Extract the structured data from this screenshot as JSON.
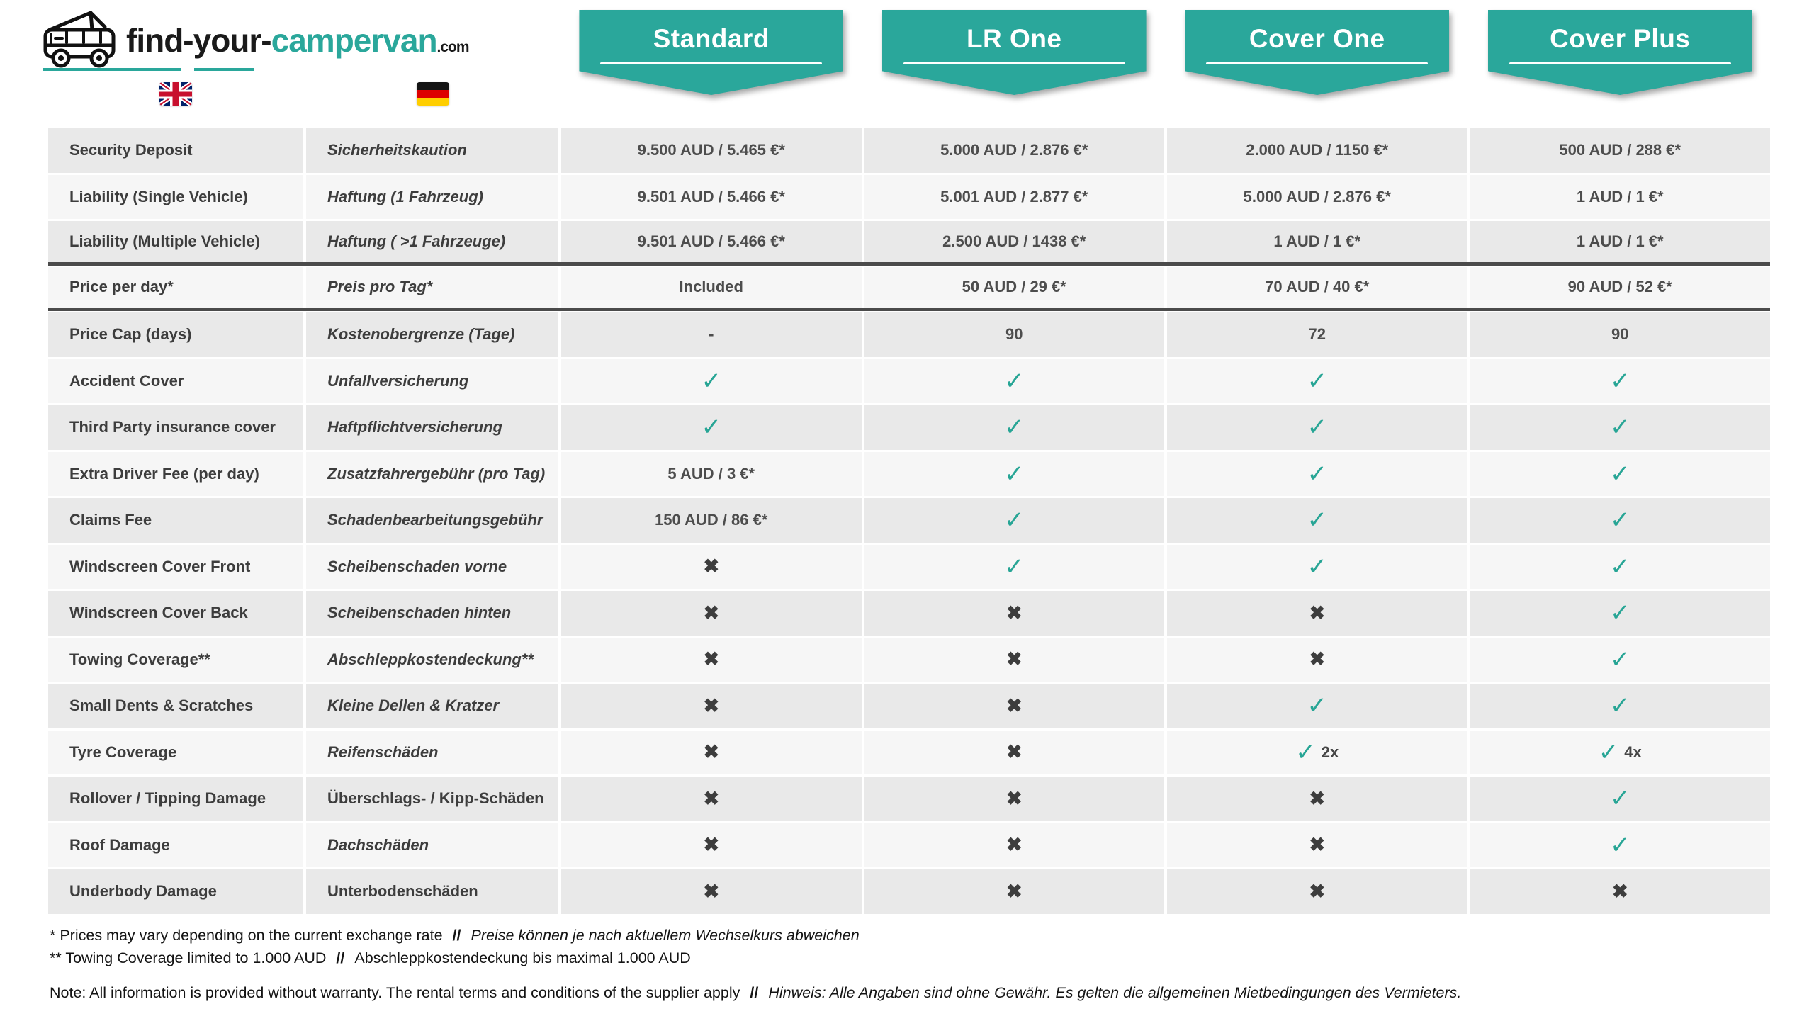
{
  "brand": {
    "name_prefix": "find-your-",
    "name_accent": "campervan",
    "name_tld": ".com"
  },
  "plans": [
    "Standard",
    "LR One",
    "Cover One",
    "Cover Plus"
  ],
  "icons": {
    "check": "✓",
    "cross": "✖",
    "uk_flag": "uk-flag",
    "germany_flag": "germany-flag",
    "logo_van": "campervan-icon"
  },
  "colors": {
    "accent_teal": "#2aa79b",
    "check_teal": "#27a595",
    "cross_gray": "#3d3d3d",
    "row_dark": "#e9e9e9",
    "row_light": "#f6f6f6",
    "divider": "#4b4b4b"
  },
  "table": {
    "rows": [
      {
        "en": "Security Deposit",
        "de": "Sicherheitskaution",
        "de_italic": true,
        "values": [
          "9.500 AUD / 5.465 €*",
          "5.000 AUD / 2.876 €*",
          "2.000 AUD / 1150 €*",
          "500 AUD / 288 €*"
        ]
      },
      {
        "en": "Liability (Single Vehicle)",
        "de": "Haftung (1 Fahrzeug)",
        "de_italic": true,
        "values": [
          "9.501 AUD / 5.466 €*",
          "5.001 AUD / 2.877 €*",
          "5.000 AUD / 2.876 €*",
          "1 AUD / 1 €*"
        ]
      },
      {
        "en": "Liability (Multiple Vehicle)",
        "de": "Haftung ( >1 Fahrzeuge)",
        "de_italic": true,
        "divider_below": true,
        "values": [
          "9.501 AUD / 5.466 €*",
          "2.500 AUD / 1438 €*",
          "1 AUD / 1 €*",
          "1 AUD / 1 €*"
        ]
      },
      {
        "en": "Price per day*",
        "de": "Preis pro Tag*",
        "de_italic": true,
        "divider_below": true,
        "values": [
          "Included",
          "50 AUD / 29 €*",
          "70 AUD / 40 €*",
          "90 AUD / 52 €*"
        ]
      },
      {
        "en": "Price Cap (days)",
        "de": "Kostenobergrenze (Tage)",
        "de_italic": true,
        "values": [
          "-",
          "90",
          "72",
          "90"
        ]
      },
      {
        "en": "Accident Cover",
        "de": "Unfallversicherung",
        "de_italic": true,
        "values": [
          "✓",
          "✓",
          "✓",
          "✓"
        ]
      },
      {
        "en": "Third Party insurance cover",
        "de": "Haftpflichtversicherung",
        "de_italic": true,
        "values": [
          "✓",
          "✓",
          "✓",
          "✓"
        ]
      },
      {
        "en": "Extra Driver Fee (per day)",
        "de": "Zusatzfahrergebühr (pro Tag)",
        "de_italic": true,
        "values": [
          "5 AUD / 3 €*",
          "✓",
          "✓",
          "✓"
        ]
      },
      {
        "en": "Claims Fee",
        "de": "Schadenbearbeitungsgebühr",
        "de_italic": true,
        "values": [
          "150 AUD / 86 €*",
          "✓",
          "✓",
          "✓"
        ]
      },
      {
        "en": "Windscreen Cover Front",
        "de": "Scheibenschaden vorne",
        "de_italic": true,
        "values": [
          "✖",
          "✓",
          "✓",
          "✓"
        ]
      },
      {
        "en": "Windscreen Cover Back",
        "de": "Scheibenschaden hinten",
        "de_italic": true,
        "values": [
          "✖",
          "✖",
          "✖",
          "✓"
        ]
      },
      {
        "en": "Towing Coverage**",
        "de": "Abschleppkostendeckung**",
        "de_italic": true,
        "values": [
          "✖",
          "✖",
          "✖",
          "✓"
        ]
      },
      {
        "en": "Small Dents & Scratches",
        "de": "Kleine Dellen & Kratzer",
        "de_italic": true,
        "values": [
          "✖",
          "✖",
          "✓",
          "✓"
        ]
      },
      {
        "en": "Tyre Coverage",
        "de": "Reifenschäden",
        "de_italic": true,
        "values": [
          "✖",
          "✖",
          "✓ 2x",
          "✓ 4x"
        ]
      },
      {
        "en": "Rollover / Tipping Damage",
        "de": "Überschlags- / Kipp-Schäden",
        "de_italic": false,
        "values": [
          "✖",
          "✖",
          "✖",
          "✓"
        ]
      },
      {
        "en": "Roof Damage",
        "de": "Dachschäden",
        "de_italic": true,
        "values": [
          "✖",
          "✖",
          "✖",
          "✓"
        ]
      },
      {
        "en": "Underbody Damage",
        "de": "Unterbodenschäden",
        "de_italic": false,
        "values": [
          "✖",
          "✖",
          "✖",
          "✖"
        ]
      }
    ]
  },
  "footnotes": {
    "line1_en": "* Prices may vary depending on the current exchange rate",
    "line1_sep": "//",
    "line1_de": "Preise können je nach aktuellem Wechselkurs abweichen",
    "line2_en": "** Towing Coverage limited to 1.000 AUD",
    "line2_sep": "//",
    "line2_de": "Abschleppkostendeckung bis maximal 1.000 AUD",
    "note_en": "Note: All information is provided without warranty. The rental terms and conditions of the supplier apply",
    "note_sep": "//",
    "note_de": "Hinweis: Alle Angaben sind ohne Gewähr. Es gelten die allgemeinen Mietbedingungen des Vermieters."
  }
}
